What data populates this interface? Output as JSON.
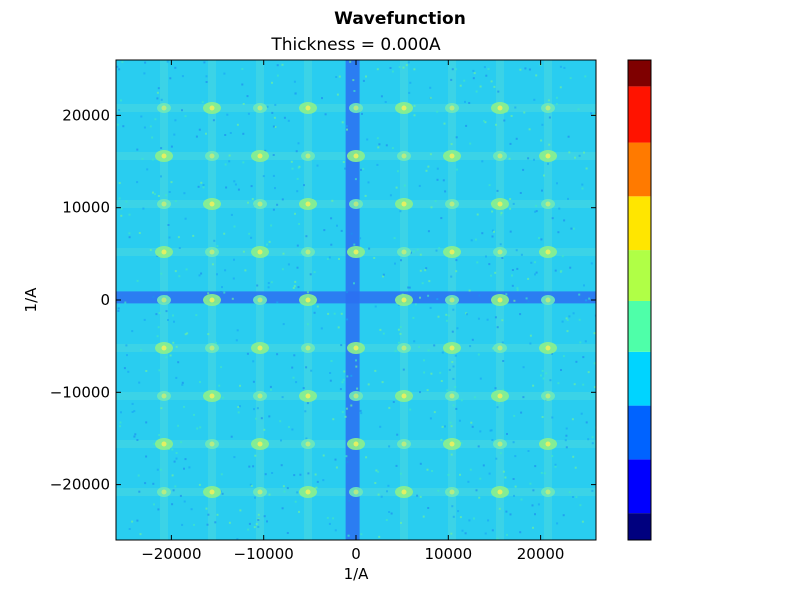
{
  "figure": {
    "suptitle": "Wavefunction",
    "title": "Thickness = 0.000A"
  },
  "chart_data": {
    "type": "heatmap",
    "title": "Thickness = 0.000A",
    "xlabel": "1/A",
    "ylabel": "1/A",
    "xlim": [
      -26000,
      26000
    ],
    "ylim": [
      -26000,
      26000
    ],
    "x_ticks": [
      -20000,
      -10000,
      0,
      10000,
      20000
    ],
    "x_tick_labels": [
      "−20000",
      "−10000",
      "0",
      "10000",
      "20000"
    ],
    "y_ticks": [
      -20000,
      -10000,
      0,
      10000,
      20000
    ],
    "y_tick_labels": [
      "−20000",
      "−10000",
      "0",
      "10000",
      "20000"
    ],
    "colormap": "jet",
    "colorbar_levels": 10,
    "colorbar_colors": [
      "#00007f",
      "#0000ff",
      "#0063ff",
      "#00d4ff",
      "#4effa9",
      "#b0ff46",
      "#ffe600",
      "#ff7a00",
      "#ff1300",
      "#7f0000"
    ],
    "background_color": "#29cdf0",
    "peak_spacing": 5200,
    "bright_peak_color": "#8cf08c",
    "dark_axis_color": "#2b6ff2",
    "grid": false
  }
}
